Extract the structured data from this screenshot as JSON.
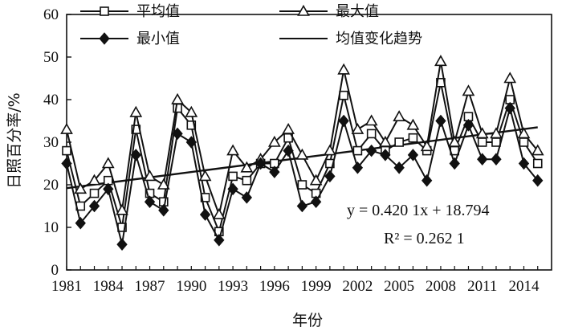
{
  "chart_data": {
    "type": "line",
    "xlabel": "年份",
    "ylabel": "日照百分率/%",
    "ylim": [
      0,
      60
    ],
    "yticks": [
      0,
      10,
      20,
      30,
      40,
      50,
      60
    ],
    "xlim": [
      1981,
      2016
    ],
    "xticks": [
      1981,
      1984,
      1987,
      1990,
      1993,
      1996,
      1999,
      2002,
      2005,
      2008,
      2011,
      2014
    ],
    "grid": false,
    "legend_position": "top",
    "x": [
      1981,
      1982,
      1983,
      1984,
      1985,
      1986,
      1987,
      1988,
      1989,
      1990,
      1991,
      1992,
      1993,
      1994,
      1995,
      1996,
      1997,
      1998,
      1999,
      2000,
      2001,
      2002,
      2003,
      2004,
      2005,
      2006,
      2007,
      2008,
      2009,
      2010,
      2011,
      2012,
      2013,
      2014,
      2015
    ],
    "series": [
      {
        "name": "平均值",
        "marker": "square",
        "values": [
          28,
          15,
          18,
          21,
          10,
          33,
          18,
          16,
          38,
          34,
          17,
          9,
          22,
          21,
          25,
          25,
          31,
          20,
          18,
          25,
          41,
          28,
          32,
          28,
          30,
          31,
          28,
          44,
          28,
          36,
          30,
          30,
          40,
          30,
          25
        ]
      },
      {
        "name": "最大值",
        "marker": "triangle",
        "values": [
          33,
          19,
          21,
          25,
          14,
          37,
          22,
          20,
          40,
          37,
          22,
          13,
          28,
          24,
          26,
          30,
          33,
          27,
          21,
          28,
          47,
          33,
          35,
          30,
          36,
          34,
          29,
          49,
          30,
          42,
          32,
          32,
          45,
          32,
          28
        ]
      },
      {
        "name": "最小值",
        "marker": "diamond",
        "values": [
          25,
          11,
          15,
          19,
          6,
          27,
          16,
          14,
          32,
          30,
          13,
          7,
          19,
          17,
          25,
          23,
          28,
          15,
          16,
          22,
          35,
          24,
          28,
          27,
          24,
          27,
          21,
          35,
          25,
          34,
          26,
          26,
          38,
          25,
          21
        ]
      }
    ],
    "trend": {
      "name": "均值变化趋势",
      "slope": 0.4201,
      "intercept": 18.794,
      "equation": "y = 0.420 1x + 18.794",
      "r2": "R² = 0.262 1"
    },
    "colors": {
      "line": "#111111",
      "marker_fill": "#ffffff",
      "axis": "#111111"
    }
  }
}
